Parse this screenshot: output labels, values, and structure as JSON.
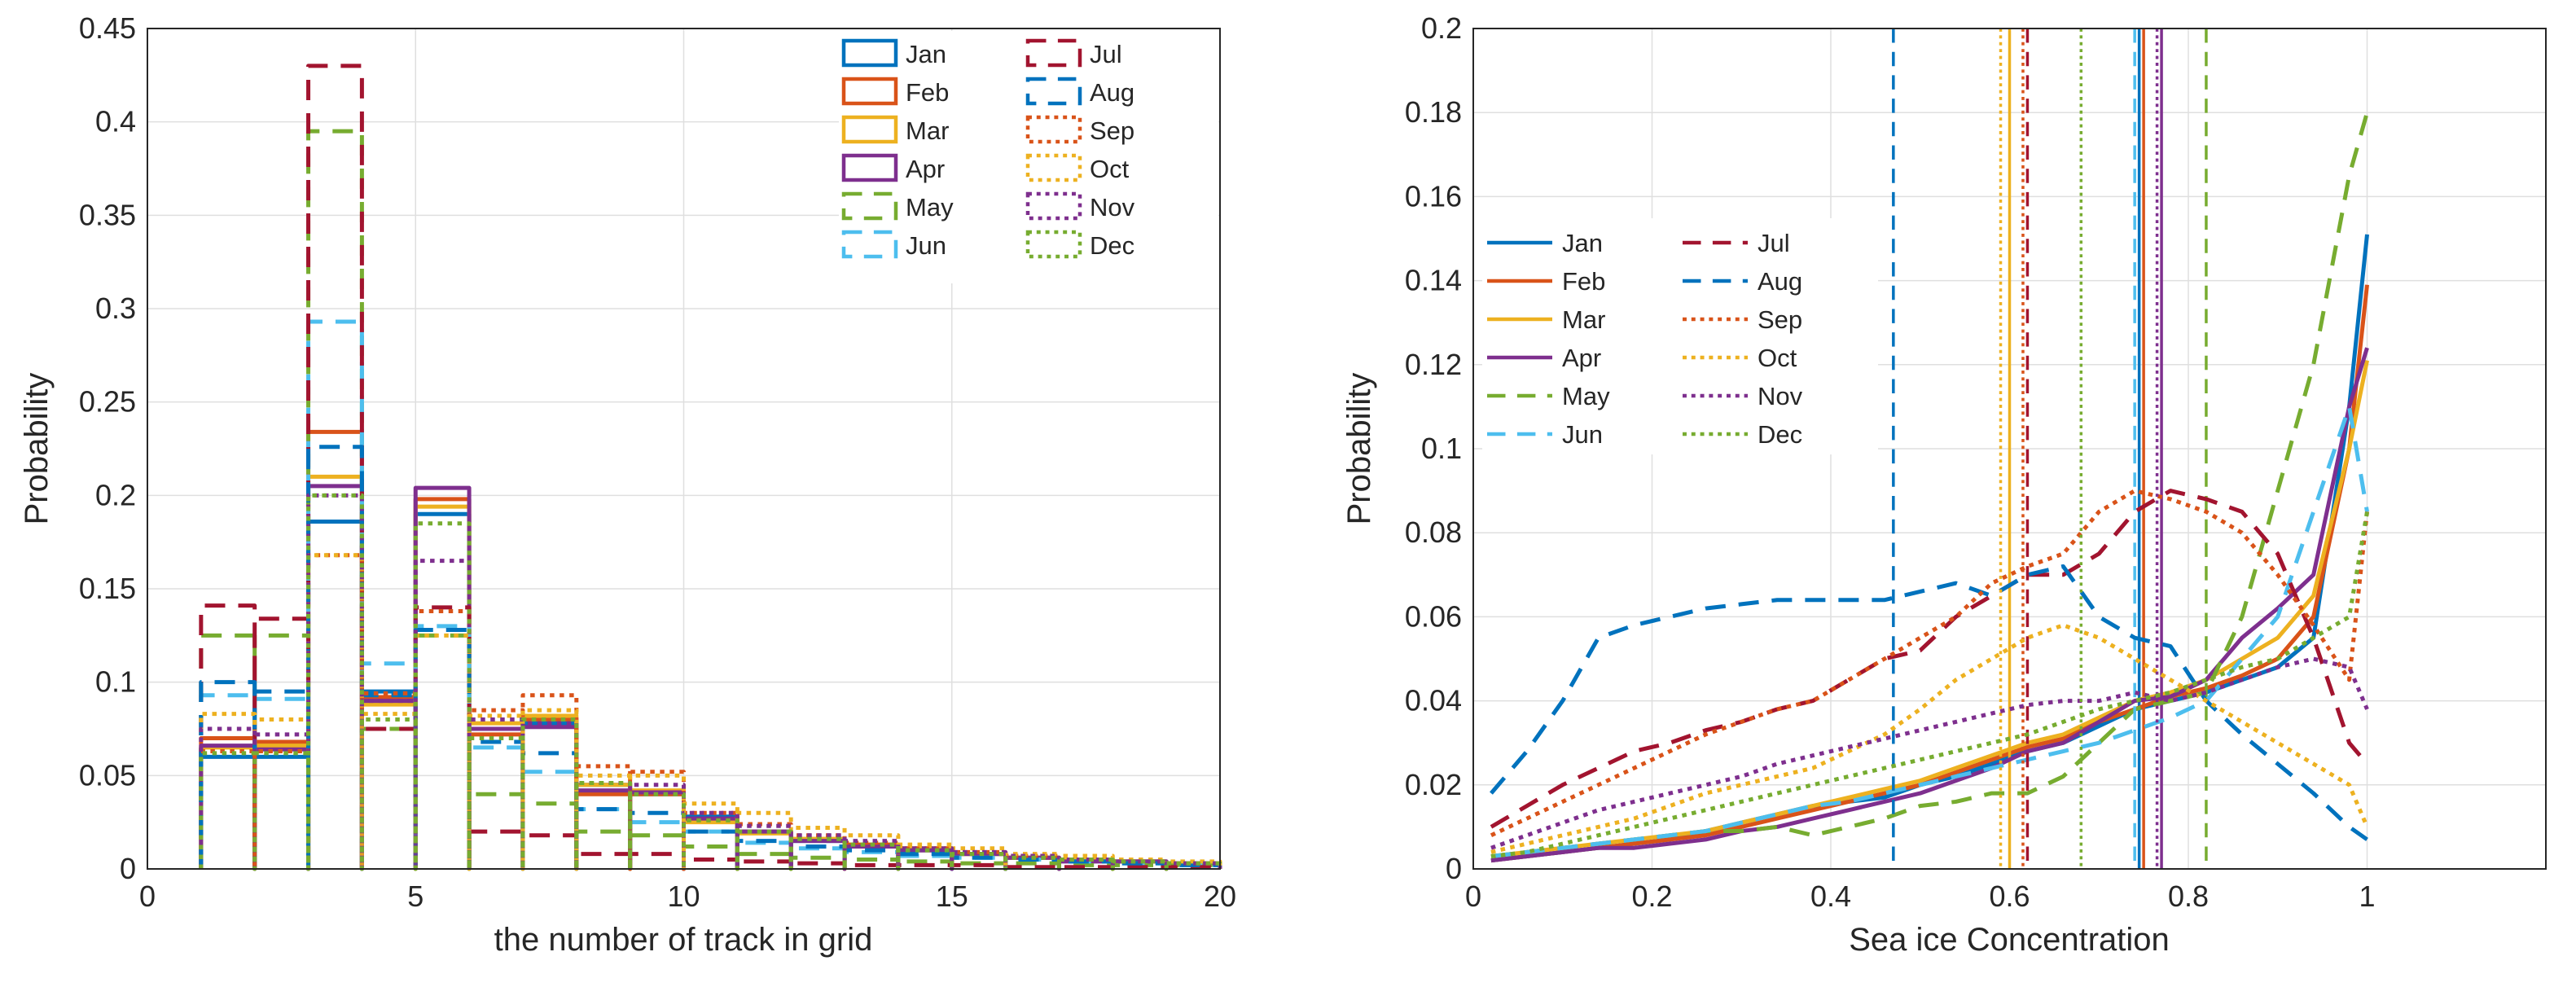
{
  "colors": {
    "Jan": "#0072BD",
    "Feb": "#D95319",
    "Mar": "#EDB120",
    "Apr": "#7E2F8E",
    "May": "#77AC30",
    "Jun": "#4DBEEE",
    "Jul": "#A2142F",
    "Aug": "#0072BD",
    "Sep": "#D95319",
    "Oct": "#EDB120",
    "Nov": "#7E2F8E",
    "Dec": "#77AC30"
  },
  "styles": {
    "Jan": "solid",
    "Feb": "solid",
    "Mar": "solid",
    "Apr": "solid",
    "May": "dashed",
    "Jun": "dashed",
    "Jul": "dashed",
    "Aug": "dashed",
    "Sep": "dotted",
    "Oct": "dotted",
    "Nov": "dotted",
    "Dec": "dotted"
  },
  "chart_data": [
    {
      "type": "bar",
      "subtype": "stairs-histogram",
      "title": "",
      "xlabel": "the number of track in grid",
      "ylabel": "Probability",
      "xlim": [
        0,
        20
      ],
      "ylim": [
        0,
        0.45
      ],
      "xticks": [
        "0",
        "5",
        "10",
        "15",
        "20"
      ],
      "yticks": [
        "0",
        "0.05",
        "0.1",
        "0.15",
        "0.2",
        "0.25",
        "0.3",
        "0.35",
        "0.4",
        "0.45"
      ],
      "grid": true,
      "legend": {
        "position": "top-right",
        "columns": 2,
        "order": [
          "Jan",
          "Feb",
          "Mar",
          "Apr",
          "May",
          "Jun",
          "Jul",
          "Aug",
          "Sep",
          "Oct",
          "Nov",
          "Dec"
        ]
      },
      "bin_edges": [
        1,
        2,
        3,
        4,
        5,
        6,
        7,
        8,
        9,
        10,
        11,
        12,
        13,
        14,
        15,
        16,
        17,
        18,
        19,
        20
      ],
      "series": [
        {
          "name": "Jan",
          "values": [
            0.06,
            0.06,
            0.186,
            0.095,
            0.19,
            0.075,
            0.078,
            0.045,
            0.04,
            0.028,
            0.02,
            0.015,
            0.012,
            0.01,
            0.008,
            0.006,
            0.005,
            0.004,
            0.003
          ]
        },
        {
          "name": "Feb",
          "values": [
            0.07,
            0.068,
            0.234,
            0.092,
            0.198,
            0.072,
            0.08,
            0.04,
            0.04,
            0.026,
            0.02,
            0.016,
            0.013,
            0.01,
            0.008,
            0.006,
            0.005,
            0.004,
            0.003
          ]
        },
        {
          "name": "Mar",
          "values": [
            0.065,
            0.066,
            0.21,
            0.088,
            0.194,
            0.078,
            0.082,
            0.045,
            0.042,
            0.025,
            0.019,
            0.016,
            0.012,
            0.011,
            0.008,
            0.006,
            0.005,
            0.004,
            0.003
          ]
        },
        {
          "name": "Apr",
          "values": [
            0.066,
            0.064,
            0.205,
            0.09,
            0.204,
            0.075,
            0.076,
            0.042,
            0.041,
            0.027,
            0.02,
            0.015,
            0.012,
            0.01,
            0.008,
            0.006,
            0.004,
            0.004,
            0.003
          ]
        },
        {
          "name": "May",
          "values": [
            0.125,
            0.125,
            0.395,
            0.075,
            0.125,
            0.04,
            0.035,
            0.02,
            0.018,
            0.012,
            0.008,
            0.006,
            0.005,
            0.004,
            0.003,
            0.003,
            0.002,
            0.002,
            0.002
          ]
        },
        {
          "name": "Jun",
          "values": [
            0.093,
            0.091,
            0.293,
            0.11,
            0.13,
            0.065,
            0.052,
            0.032,
            0.025,
            0.02,
            0.014,
            0.011,
            0.009,
            0.007,
            0.006,
            0.005,
            0.004,
            0.003,
            0.002
          ]
        },
        {
          "name": "Jul",
          "values": [
            0.141,
            0.134,
            0.43,
            0.075,
            0.14,
            0.02,
            0.018,
            0.008,
            0.008,
            0.005,
            0.004,
            0.003,
            0.002,
            0.002,
            0.002,
            0.001,
            0.001,
            0.001,
            0.001
          ]
        },
        {
          "name": "Aug",
          "values": [
            0.1,
            0.095,
            0.226,
            0.093,
            0.128,
            0.068,
            0.062,
            0.032,
            0.03,
            0.02,
            0.015,
            0.012,
            0.01,
            0.008,
            0.006,
            0.005,
            0.004,
            0.003,
            0.002
          ]
        },
        {
          "name": "Sep",
          "values": [
            0.063,
            0.063,
            0.168,
            0.094,
            0.138,
            0.085,
            0.093,
            0.055,
            0.052,
            0.03,
            0.024,
            0.018,
            0.014,
            0.011,
            0.009,
            0.007,
            0.005,
            0.004,
            0.003
          ]
        },
        {
          "name": "Oct",
          "values": [
            0.083,
            0.08,
            0.168,
            0.083,
            0.125,
            0.082,
            0.085,
            0.05,
            0.05,
            0.035,
            0.03,
            0.022,
            0.018,
            0.013,
            0.011,
            0.008,
            0.007,
            0.005,
            0.004
          ]
        },
        {
          "name": "Nov",
          "values": [
            0.075,
            0.072,
            0.2,
            0.09,
            0.165,
            0.08,
            0.078,
            0.046,
            0.045,
            0.03,
            0.023,
            0.018,
            0.015,
            0.011,
            0.009,
            0.007,
            0.005,
            0.004,
            0.003
          ]
        },
        {
          "name": "Dec",
          "values": [
            0.062,
            0.062,
            0.2,
            0.08,
            0.185,
            0.07,
            0.08,
            0.046,
            0.04,
            0.026,
            0.02,
            0.016,
            0.013,
            0.01,
            0.008,
            0.006,
            0.005,
            0.004,
            0.003
          ]
        }
      ]
    },
    {
      "type": "line",
      "title": "",
      "xlabel": "Sea ice Concentration",
      "ylabel": "Probability",
      "xlim": [
        0,
        1.2
      ],
      "ylim": [
        0,
        0.2
      ],
      "xticks": [
        "0",
        "0.2",
        "0.4",
        "0.6",
        "0.8",
        "1"
      ],
      "yticks": [
        "0",
        "0.02",
        "0.04",
        "0.06",
        "0.08",
        "0.1",
        "0.12",
        "0.14",
        "0.16",
        "0.18",
        "0.2"
      ],
      "grid": true,
      "legend": {
        "position": "top-left",
        "columns": 2,
        "order": [
          "Jan",
          "Feb",
          "Mar",
          "Apr",
          "May",
          "Jun",
          "Jul",
          "Aug",
          "Sep",
          "Oct",
          "Nov",
          "Dec"
        ]
      },
      "x": [
        0.02,
        0.06,
        0.1,
        0.14,
        0.18,
        0.22,
        0.26,
        0.3,
        0.34,
        0.38,
        0.42,
        0.46,
        0.5,
        0.54,
        0.58,
        0.62,
        0.66,
        0.7,
        0.74,
        0.78,
        0.82,
        0.86,
        0.9,
        0.94,
        0.98,
        1.0
      ],
      "series": [
        {
          "name": "Jan",
          "values": [
            0.002,
            0.003,
            0.004,
            0.005,
            0.006,
            0.007,
            0.009,
            0.011,
            0.013,
            0.015,
            0.016,
            0.017,
            0.02,
            0.022,
            0.025,
            0.028,
            0.03,
            0.034,
            0.038,
            0.04,
            0.042,
            0.045,
            0.048,
            0.055,
            0.11,
            0.151
          ],
          "mean_line": 0.745
        },
        {
          "name": "Feb",
          "values": [
            0.002,
            0.003,
            0.004,
            0.005,
            0.006,
            0.007,
            0.008,
            0.01,
            0.012,
            0.014,
            0.016,
            0.018,
            0.02,
            0.023,
            0.026,
            0.029,
            0.031,
            0.035,
            0.038,
            0.041,
            0.043,
            0.046,
            0.05,
            0.06,
            0.1,
            0.139
          ],
          "mean_line": 0.75
        },
        {
          "name": "Mar",
          "values": [
            0.003,
            0.004,
            0.005,
            0.006,
            0.007,
            0.008,
            0.009,
            0.011,
            0.013,
            0.015,
            0.017,
            0.019,
            0.021,
            0.024,
            0.027,
            0.03,
            0.032,
            0.036,
            0.04,
            0.042,
            0.045,
            0.05,
            0.055,
            0.065,
            0.1,
            0.121
          ],
          "mean_line": 0.6
        },
        {
          "name": "Apr",
          "values": [
            0.002,
            0.003,
            0.004,
            0.005,
            0.005,
            0.006,
            0.007,
            0.009,
            0.01,
            0.012,
            0.014,
            0.016,
            0.018,
            0.021,
            0.024,
            0.028,
            0.03,
            0.035,
            0.04,
            0.041,
            0.045,
            0.055,
            0.062,
            0.07,
            0.11,
            0.124
          ],
          "mean_line": 0.77
        },
        {
          "name": "May",
          "values": [
            0.003,
            0.004,
            0.005,
            0.006,
            0.007,
            0.008,
            0.009,
            0.009,
            0.01,
            0.008,
            0.01,
            0.012,
            0.015,
            0.016,
            0.018,
            0.018,
            0.022,
            0.03,
            0.038,
            0.04,
            0.042,
            0.06,
            0.09,
            0.12,
            0.165,
            0.18
          ],
          "mean_line": 0.82
        },
        {
          "name": "Jun",
          "values": [
            0.003,
            0.004,
            0.005,
            0.006,
            0.007,
            0.008,
            0.009,
            0.011,
            0.013,
            0.015,
            0.016,
            0.018,
            0.02,
            0.022,
            0.024,
            0.026,
            0.028,
            0.03,
            0.033,
            0.036,
            0.04,
            0.05,
            0.06,
            0.085,
            0.11,
            0.085
          ],
          "mean_line": 0.74
        },
        {
          "name": "Jul",
          "values": [
            0.01,
            0.015,
            0.02,
            0.024,
            0.028,
            0.03,
            0.033,
            0.035,
            0.038,
            0.04,
            0.045,
            0.05,
            0.052,
            0.06,
            0.065,
            0.07,
            0.07,
            0.075,
            0.085,
            0.09,
            0.088,
            0.085,
            0.075,
            0.055,
            0.03,
            0.025
          ],
          "mean_line": 0.62
        },
        {
          "name": "Aug",
          "values": [
            0.018,
            0.028,
            0.04,
            0.055,
            0.058,
            0.06,
            0.062,
            0.063,
            0.064,
            0.064,
            0.064,
            0.064,
            0.066,
            0.068,
            0.065,
            0.07,
            0.072,
            0.06,
            0.055,
            0.053,
            0.04,
            0.032,
            0.025,
            0.018,
            0.01,
            0.007
          ],
          "mean_line": 0.47
        },
        {
          "name": "Sep",
          "values": [
            0.008,
            0.012,
            0.016,
            0.02,
            0.024,
            0.028,
            0.032,
            0.035,
            0.038,
            0.04,
            0.045,
            0.05,
            0.055,
            0.06,
            0.068,
            0.072,
            0.075,
            0.085,
            0.09,
            0.088,
            0.085,
            0.08,
            0.07,
            0.058,
            0.045,
            0.085
          ],
          "mean_line": 0.615
        },
        {
          "name": "Oct",
          "values": [
            0.004,
            0.006,
            0.008,
            0.01,
            0.012,
            0.015,
            0.018,
            0.02,
            0.022,
            0.024,
            0.028,
            0.032,
            0.038,
            0.045,
            0.05,
            0.055,
            0.058,
            0.055,
            0.05,
            0.045,
            0.04,
            0.035,
            0.03,
            0.025,
            0.02,
            0.01
          ],
          "mean_line": 0.59
        },
        {
          "name": "Nov",
          "values": [
            0.005,
            0.008,
            0.011,
            0.014,
            0.016,
            0.018,
            0.02,
            0.022,
            0.025,
            0.027,
            0.029,
            0.031,
            0.033,
            0.035,
            0.037,
            0.039,
            0.04,
            0.04,
            0.042,
            0.04,
            0.042,
            0.045,
            0.048,
            0.05,
            0.048,
            0.038
          ],
          "mean_line": 0.765
        },
        {
          "name": "Dec",
          "values": [
            0.003,
            0.004,
            0.006,
            0.008,
            0.01,
            0.012,
            0.014,
            0.016,
            0.018,
            0.02,
            0.022,
            0.024,
            0.026,
            0.028,
            0.03,
            0.032,
            0.035,
            0.038,
            0.04,
            0.042,
            0.045,
            0.048,
            0.05,
            0.055,
            0.06,
            0.085
          ],
          "mean_line": 0.68
        }
      ]
    }
  ]
}
